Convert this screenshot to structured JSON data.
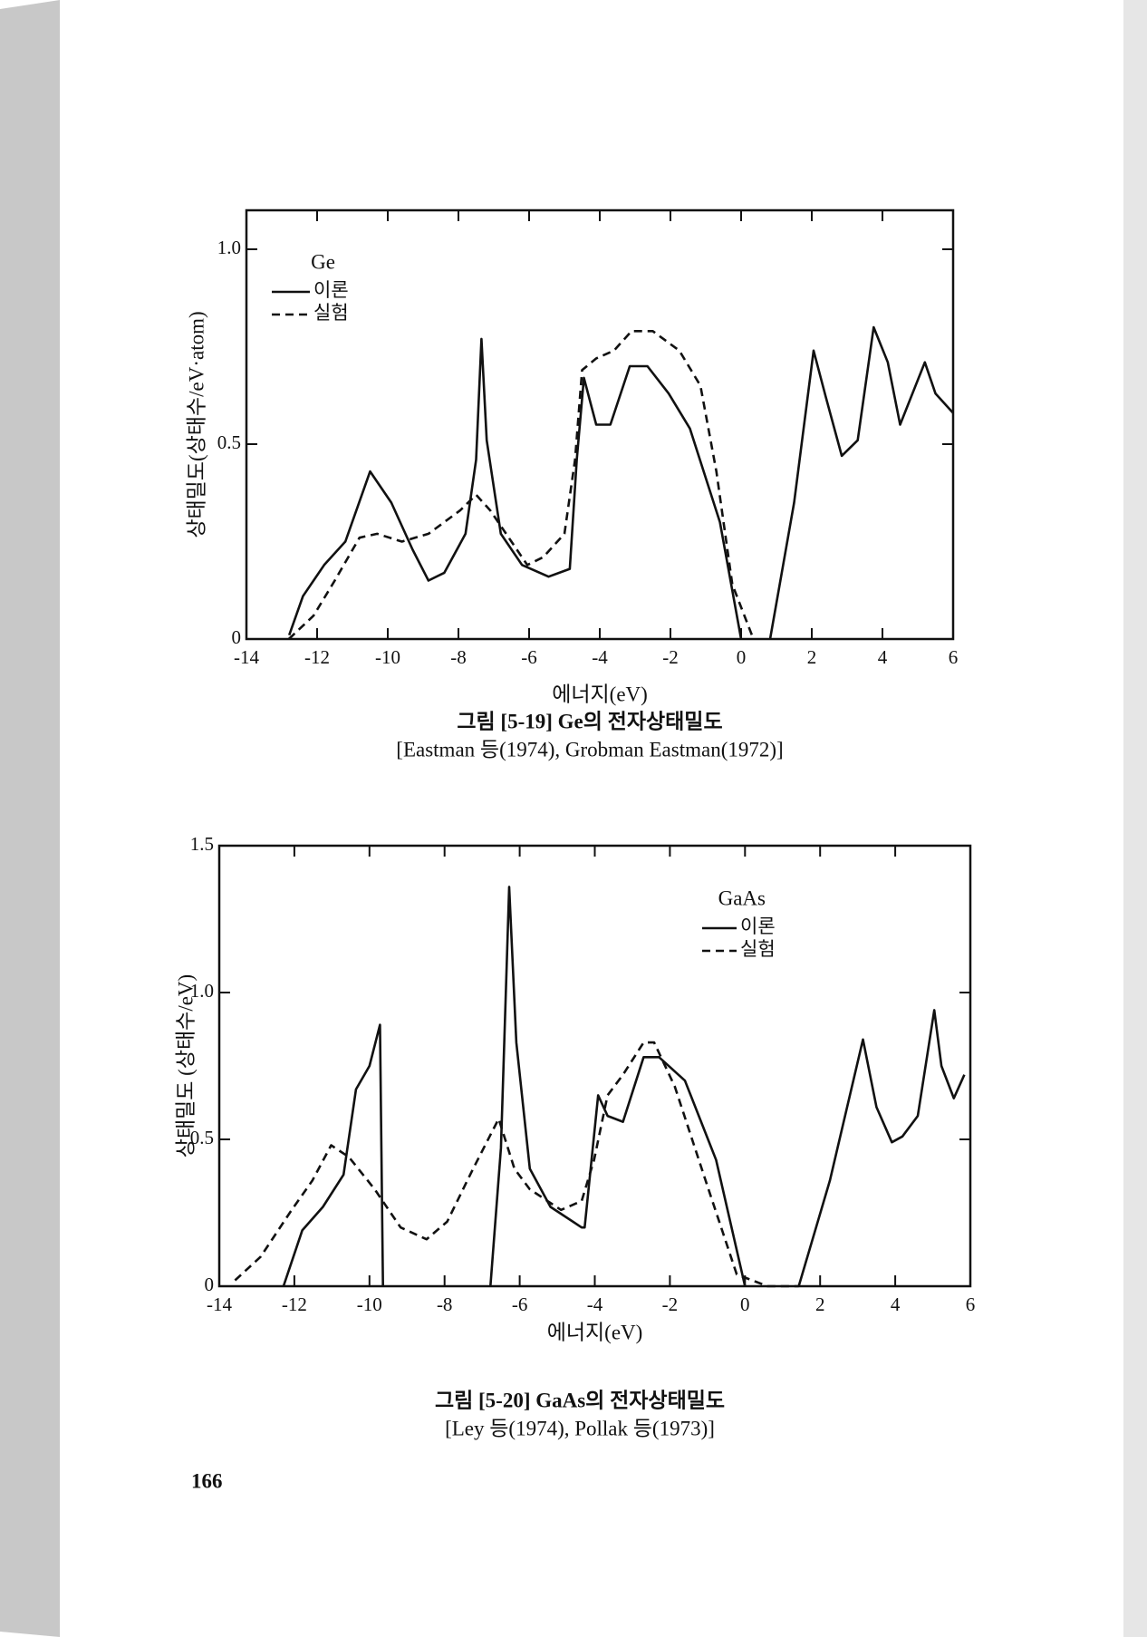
{
  "page_number": "166",
  "chart_data": [
    {
      "type": "line",
      "x_label": "에너지(eV)",
      "y_label": "상태밀도(상태수/eV·atom)",
      "legend_title": "Ge",
      "caption": [
        "그림 [5-19]  Ge의 전자상태밀도",
        "[Eastman 등(1974),  Grobman Eastman(1972)]"
      ],
      "xlim": [
        -14,
        6
      ],
      "ylim": [
        0,
        1.1
      ],
      "xticks": [
        -14,
        -12,
        -10,
        -8,
        -6,
        -4,
        -2,
        0,
        2,
        4,
        6
      ],
      "yticks": [
        0,
        0.5,
        {
          "value": 1,
          "label": "1.0"
        }
      ],
      "series": [
        {
          "name": "이론",
          "color": "#111111",
          "line_style": "solid",
          "x": [
            -12.79,
            -12.4,
            -11.8,
            -11.2,
            -10.5,
            -9.9,
            -9.3,
            -8.85,
            -8.4,
            -7.8,
            -7.5,
            -7.35,
            -7.2,
            -6.8,
            -6.2,
            -5.45,
            -4.85,
            -4.65,
            -4.45,
            -4.1,
            -3.7,
            -3.15,
            -2.65,
            -2.05,
            -1.45,
            -0.6,
            0.0,
            null,
            0.82,
            1.5,
            2.05,
            2.4,
            2.85,
            3.3,
            3.75,
            4.15,
            4.5,
            5.2,
            5.5,
            6.0
          ],
          "values": [
            0.01,
            0.11,
            0.19,
            0.25,
            0.43,
            0.35,
            0.23,
            0.15,
            0.17,
            0.27,
            0.46,
            0.77,
            0.51,
            0.27,
            0.19,
            0.16,
            0.18,
            0.46,
            0.67,
            0.55,
            0.55,
            0.7,
            0.7,
            0.63,
            0.54,
            0.3,
            0.0,
            null,
            0.0,
            0.35,
            0.74,
            0.62,
            0.47,
            0.51,
            0.8,
            0.71,
            0.55,
            0.71,
            0.63,
            0.58
          ]
        },
        {
          "name": "실험",
          "color": "#111111",
          "line_style": "dashed",
          "x": [
            -12.8,
            -12.1,
            -11.5,
            -10.8,
            -10.3,
            -9.6,
            -8.85,
            -7.95,
            -7.5,
            -7.1,
            -6.5,
            -6.05,
            -5.6,
            -5.0,
            -4.7,
            -4.5,
            -4.1,
            -3.6,
            -3.1,
            -2.5,
            -1.75,
            -1.15,
            -0.7,
            -0.25,
            0.35
          ],
          "values": [
            0.0,
            0.06,
            0.15,
            0.26,
            0.27,
            0.25,
            0.27,
            0.33,
            0.37,
            0.33,
            0.25,
            0.19,
            0.21,
            0.27,
            0.46,
            0.69,
            0.72,
            0.74,
            0.79,
            0.79,
            0.74,
            0.65,
            0.43,
            0.14,
            0.0
          ]
        }
      ]
    },
    {
      "type": "line",
      "x_label": "에너지(eV)",
      "y_label": "상태밀도 (상태수/eV)",
      "legend_title": "GaAs",
      "caption": [
        "그림 [5-20]  GaAs의 전자상태밀도",
        "[Ley 등(1974),  Pollak 등(1973)]"
      ],
      "xlim": [
        -14,
        6
      ],
      "ylim": [
        0,
        1.5
      ],
      "xticks": [
        -14,
        -12,
        -10,
        -8,
        -6,
        -4,
        -2,
        0,
        2,
        4,
        6
      ],
      "yticks": [
        0,
        0.5,
        {
          "value": 1,
          "label": "1.0"
        },
        1.5
      ],
      "series": [
        {
          "name": "이론",
          "color": "#111111",
          "line_style": "solid",
          "x": [
            -12.29,
            -11.79,
            -11.24,
            -10.69,
            -10.36,
            -10.0,
            -9.72,
            -9.64,
            null,
            -6.78,
            -6.5,
            -6.28,
            -6.09,
            -5.73,
            -5.18,
            -4.35,
            -4.27,
            -3.91,
            -3.66,
            -3.25,
            -2.7,
            -2.29,
            -1.6,
            -0.77,
            0.0,
            null,
            1.43,
            2.26,
            3.14,
            3.5,
            3.91,
            4.19,
            4.6,
            5.04,
            5.23,
            5.56,
            5.84
          ],
          "values": [
            0.0,
            0.19,
            0.27,
            0.38,
            0.67,
            0.75,
            0.89,
            0.0,
            null,
            0.0,
            0.47,
            1.36,
            0.83,
            0.4,
            0.27,
            0.2,
            0.2,
            0.65,
            0.58,
            0.56,
            0.78,
            0.78,
            0.7,
            0.43,
            0.0,
            null,
            0.0,
            0.36,
            0.84,
            0.61,
            0.49,
            0.51,
            0.58,
            0.94,
            0.75,
            0.64,
            0.72
          ]
        },
        {
          "name": "실험",
          "color": "#111111",
          "line_style": "dashed",
          "x": [
            -13.58,
            -12.9,
            -12.07,
            -11.52,
            -11.02,
            -10.55,
            -9.86,
            -9.17,
            -8.48,
            -7.93,
            -7.24,
            -6.56,
            -6.14,
            -5.73,
            -4.9,
            -4.35,
            -4.02,
            -3.66,
            -3.25,
            -2.7,
            -2.42,
            -1.87,
            -1.05,
            -0.22,
            0.6,
            1.43
          ],
          "values": [
            0.02,
            0.1,
            0.26,
            0.36,
            0.48,
            0.44,
            0.33,
            0.2,
            0.16,
            0.22,
            0.4,
            0.57,
            0.4,
            0.33,
            0.26,
            0.29,
            0.43,
            0.65,
            0.72,
            0.83,
            0.83,
            0.68,
            0.36,
            0.04,
            0.0,
            0.0
          ]
        }
      ]
    }
  ]
}
